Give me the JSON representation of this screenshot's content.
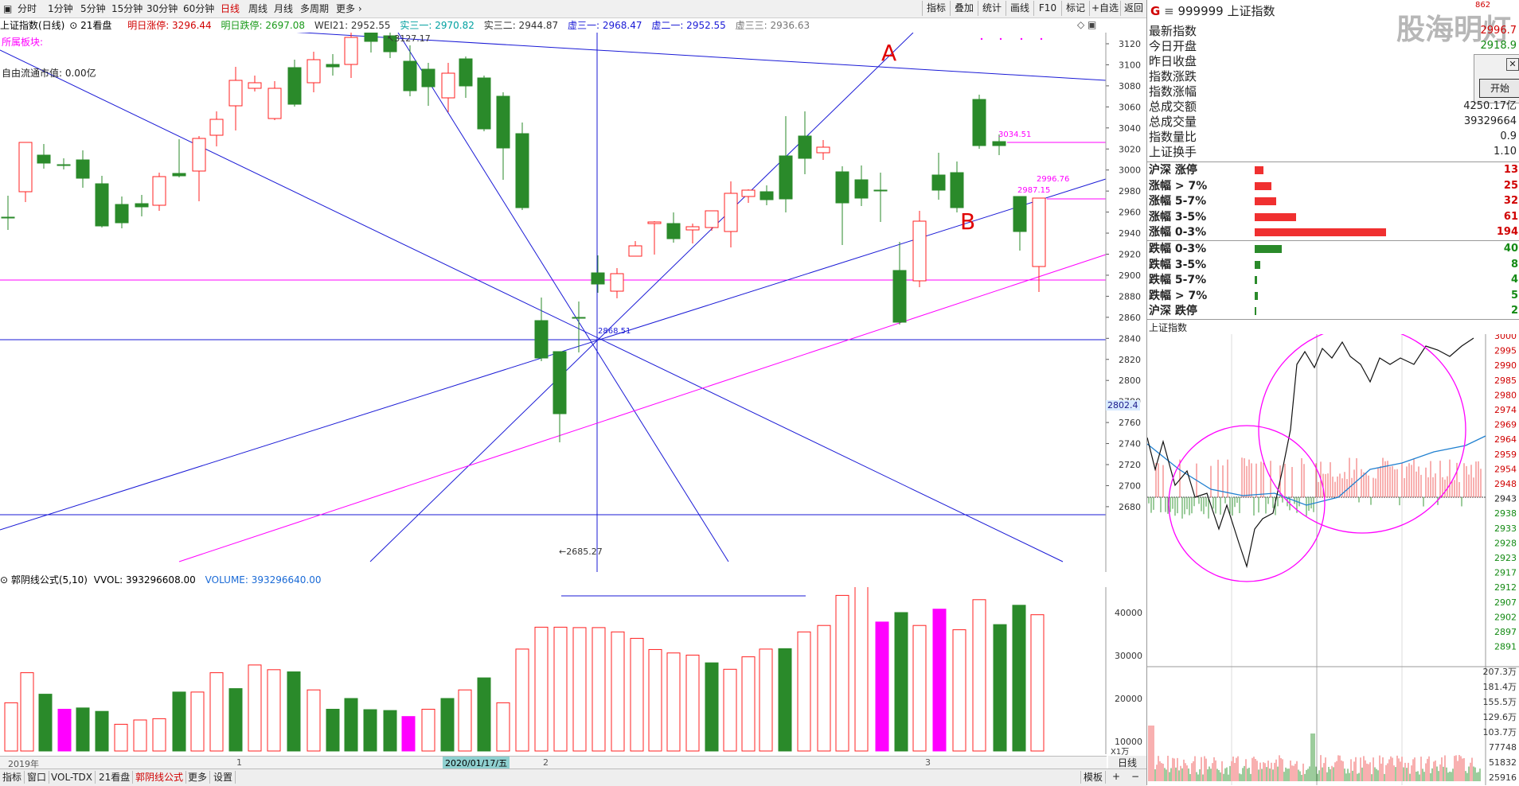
{
  "toolbar": {
    "periods": [
      "分时",
      "1分钟",
      "5分钟",
      "15分钟",
      "30分钟",
      "60分钟",
      "日线",
      "周线",
      "月线",
      "多周期",
      "更多"
    ],
    "active_period": "日线",
    "right_buttons": [
      "指标",
      "叠加",
      "统计",
      "画线",
      "F10",
      "标记",
      "+自选",
      "返回"
    ]
  },
  "info": {
    "title": "上证指数(日线)",
    "view": "21看盘",
    "up_label": "明日涨停: 3296.44",
    "down_label": "明日跌停: 2697.08",
    "wei21": "WEI21: 2952.55",
    "real3_1": "实三一: 2970.82",
    "real3_2": "实三二: 2944.87",
    "virt3_1": "虚三一: 2968.47",
    "virt2_1": "虚二一: 2952.55",
    "virt3_3": "虚三三: 2936.63",
    "sector": "所属板块:",
    "float_cap": "自由流通市值: 0.00亿"
  },
  "annotations": {
    "label_a": "A",
    "label_b": "B",
    "high": "3127.17",
    "low": "2685.27",
    "center": "2868.51",
    "p1": "3034.51",
    "p2": "2996.76",
    "p3": "2987.15"
  },
  "price_axis": [
    "3120",
    "3100",
    "3080",
    "3060",
    "3040",
    "3020",
    "3000",
    "2980",
    "2960",
    "2940",
    "2920",
    "2900",
    "2880",
    "2860",
    "2840",
    "2820",
    "2800",
    "2780",
    "2760",
    "2740",
    "2720",
    "2700",
    "2680"
  ],
  "price_marker": "2802.4",
  "volume": {
    "header_name": "郭阴线公式(5,10)",
    "vvol": "VVOL: 393296608.00",
    "volume": "VOLUME: 393296640.00",
    "axis": [
      "40000",
      "30000",
      "20000",
      "10000"
    ],
    "unit": "X1万"
  },
  "dates": {
    "year": "2019年",
    "m1": "1",
    "m2": "2",
    "m3": "3",
    "current": "2020/01/17/五"
  },
  "bottom_tabs": [
    "指标",
    "窗口",
    "VOL-TDX",
    "21看盘",
    "郭阴线公式",
    "更多",
    "设置"
  ],
  "bottom_active": "郭阴线公式",
  "bottom_right": "模板",
  "right": {
    "code": "999999",
    "name": "上证指数",
    "watermark": "股海明灯",
    "dialog_button": "开始",
    "stats": [
      {
        "label": "最新指数",
        "value": "2996.7",
        "color": "#d00000"
      },
      {
        "label": "今日开盘",
        "value": "2918.9",
        "color": "#138a13"
      },
      {
        "label": "昨日收盘",
        "value": "",
        "color": "#222"
      },
      {
        "label": "指数涨跌",
        "value": "",
        "color": "#222"
      },
      {
        "label": "指数涨幅",
        "value": "",
        "color": "#222"
      },
      {
        "label": "总成交额",
        "value": "4250.17亿",
        "color": "#222"
      },
      {
        "label": "总成交量",
        "value": "39329664",
        "color": "#222"
      },
      {
        "label": "指数量比",
        "value": "0.9",
        "color": "#222"
      },
      {
        "label": "上证换手",
        "value": "1.10",
        "color": "#222"
      }
    ],
    "breadth_up": [
      {
        "label": "沪深 涨停",
        "value": "13",
        "count": 13
      },
      {
        "label": "涨幅 > 7%",
        "value": "25",
        "count": 25
      },
      {
        "label": "涨幅 5-7%",
        "value": "32",
        "count": 32
      },
      {
        "label": "涨幅 3-5%",
        "value": "61",
        "count": 61
      },
      {
        "label": "涨幅 0-3%",
        "value": "194",
        "count": 194
      }
    ],
    "breadth_down": [
      {
        "label": "跌幅 0-3%",
        "value": "40",
        "count": 40
      },
      {
        "label": "跌幅 3-5%",
        "value": "8",
        "count": 8
      },
      {
        "label": "跌幅 5-7%",
        "value": "4",
        "count": 4
      },
      {
        "label": "跌幅 > 7%",
        "value": "5",
        "count": 5
      },
      {
        "label": "沪深 跌停",
        "value": "2",
        "count": 2
      }
    ],
    "intraday_title": "上证指数",
    "intraday_axis": [
      "3000",
      "2995",
      "2990",
      "2985",
      "2980",
      "2974",
      "2969",
      "2964",
      "2959",
      "2954",
      "2948",
      "2943",
      "2938",
      "2933",
      "2928",
      "2923",
      "2917",
      "2912",
      "2907",
      "2902",
      "2897",
      "2891"
    ],
    "intraday_vol_axis": [
      "207.3万",
      "181.4万",
      "155.5万",
      "129.6万",
      "103.7万",
      "77748",
      "51832",
      "25916"
    ],
    "corner_value": "862"
  },
  "colors": {
    "up": "#ff2020",
    "down": "#2a8a2a",
    "magenta": "#ff00ff",
    "blue": "#1a1ad6"
  }
}
